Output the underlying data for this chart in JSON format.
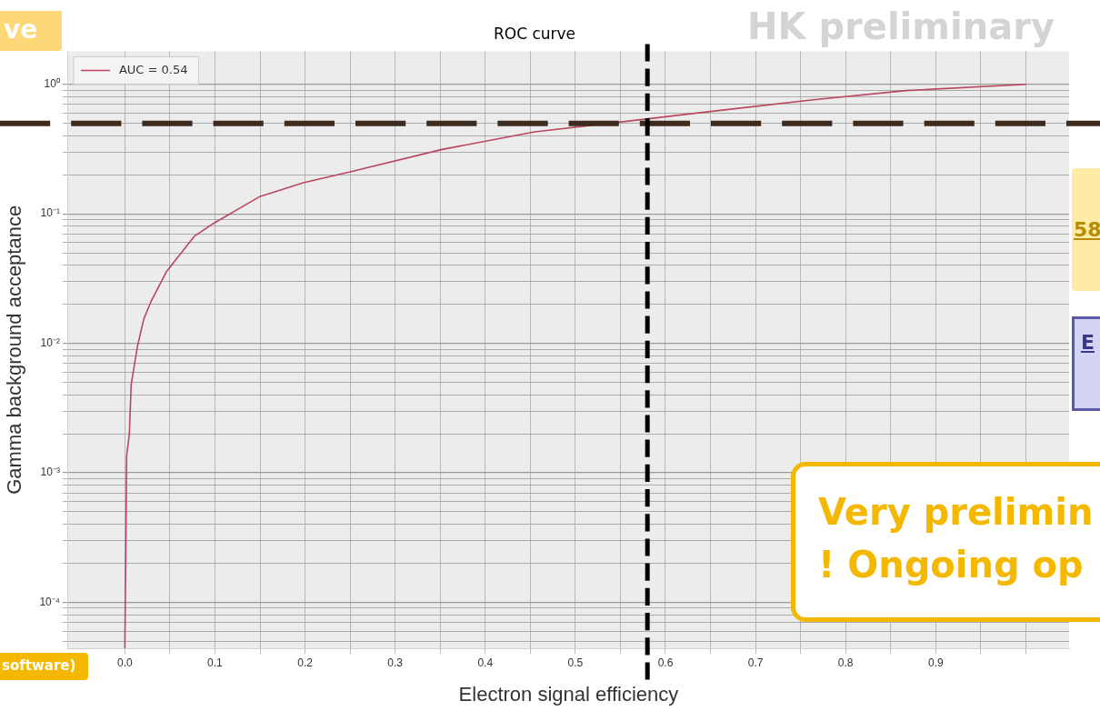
{
  "chart_data": {
    "type": "line",
    "title": "ROC curve",
    "xlabel": "Electron signal efficiency",
    "ylabel": "Gamma background acceptance",
    "series": [
      {
        "name": "AUC = 0.54",
        "color": "#b8475f",
        "x": [
          0,
          0.002,
          0.005,
          0.007,
          0.014,
          0.021,
          0.029,
          0.046,
          0.077,
          0.098,
          0.149,
          0.198,
          0.249,
          0.352,
          0.455,
          0.579,
          0.661,
          0.764,
          0.867,
          1.0
        ],
        "values": [
          4.4e-05,
          0.00135,
          0.002,
          0.0048,
          0.0095,
          0.0154,
          0.021,
          0.0356,
          0.067,
          0.084,
          0.135,
          0.174,
          0.21,
          0.314,
          0.43,
          0.54,
          0.63,
          0.76,
          0.895,
          1.0
        ]
      }
    ],
    "log": "y",
    "xlim": [
      -0.063,
      1.048
    ],
    "ylim": [
      4.4e-05,
      1.8
    ],
    "xticks": [
      {
        "value": 0,
        "label": "0.0"
      },
      {
        "value": 0.05,
        "label": null
      },
      0.1,
      {
        "value": 0.15,
        "label": null
      },
      0.2,
      {
        "value": 0.25,
        "label": null
      },
      0.3,
      {
        "value": 0.35,
        "label": null
      },
      0.4,
      {
        "value": 0.45,
        "label": null
      },
      0.5,
      {
        "value": 0.55,
        "label": null
      },
      0.6,
      {
        "value": 0.65,
        "label": null
      },
      0.7,
      {
        "value": 0.75,
        "label": null
      },
      0.8,
      {
        "value": 0.85,
        "label": null
      },
      0.9,
      {
        "value": 0.95,
        "label": null
      },
      {
        "value": 1.0,
        "label": null
      }
    ],
    "yticks": [
      {
        "value": 5e-05,
        "label": null
      },
      {
        "value": 6e-05,
        "label": null
      },
      {
        "value": 7e-05,
        "label": null
      },
      {
        "value": 8e-05,
        "label": null
      },
      {
        "value": 9e-05,
        "label": null
      },
      {
        "value": 0.0001,
        "label": "10⁻⁴"
      },
      {
        "value": 0.0002,
        "label": null
      },
      {
        "value": 0.0003,
        "label": null
      },
      {
        "value": 0.0004,
        "label": null
      },
      {
        "value": 0.0005,
        "label": null
      },
      {
        "value": 0.0006,
        "label": null
      },
      {
        "value": 0.0007,
        "label": null
      },
      {
        "value": 0.0008,
        "label": null
      },
      {
        "value": 0.0009,
        "label": null
      },
      {
        "value": 0.001,
        "label": "10⁻³"
      },
      {
        "value": 0.002,
        "label": null
      },
      {
        "value": 0.003,
        "label": null
      },
      {
        "value": 0.004,
        "label": null
      },
      {
        "value": 0.005,
        "label": null
      },
      {
        "value": 0.006,
        "label": null
      },
      {
        "value": 0.007,
        "label": null
      },
      {
        "value": 0.008,
        "label": null
      },
      {
        "value": 0.009,
        "label": null
      },
      {
        "value": 0.01,
        "label": "10⁻²"
      },
      {
        "value": 0.02,
        "label": null
      },
      {
        "value": 0.03,
        "label": null
      },
      {
        "value": 0.04,
        "label": null
      },
      {
        "value": 0.05,
        "label": null
      },
      {
        "value": 0.06,
        "label": null
      },
      {
        "value": 0.07,
        "label": null
      },
      {
        "value": 0.08,
        "label": null
      },
      {
        "value": 0.09,
        "label": null
      },
      {
        "value": 0.1,
        "label": "10⁻¹"
      },
      {
        "value": 0.2,
        "label": null
      },
      {
        "value": 0.3,
        "label": null
      },
      {
        "value": 0.4,
        "label": null
      },
      {
        "value": 0.5,
        "label": null
      },
      {
        "value": 0.6,
        "label": null
      },
      {
        "value": 0.7,
        "label": null
      },
      {
        "value": 0.8,
        "label": null
      },
      {
        "value": 0.9,
        "label": null
      },
      {
        "value": 1,
        "label": "10⁰"
      }
    ],
    "grid": true,
    "legend": "top left",
    "line_style": "solid",
    "marker": "none",
    "ref_lines": [
      {
        "axis": "y",
        "value": 0.5,
        "color": "#3d2b1f",
        "line_style": "dashed"
      },
      {
        "axis": "x",
        "value": 0.58,
        "color": "#000000",
        "line_style": "dashed"
      }
    ],
    "annotations": [
      "HK preliminary",
      "ve",
      "58",
      "E",
      "Very prelimin",
      "! Ongoing op",
      "software)"
    ]
  }
}
